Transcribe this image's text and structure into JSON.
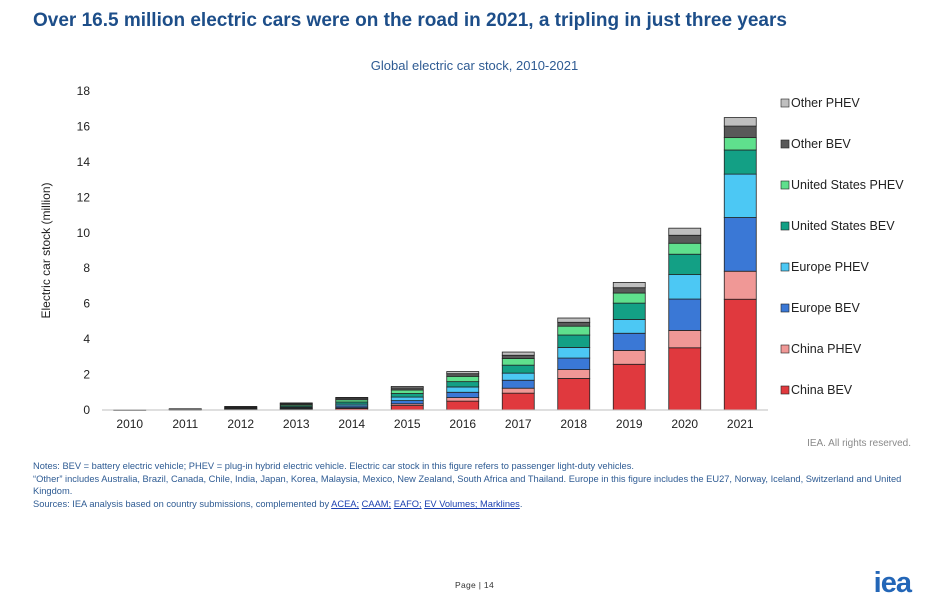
{
  "slide": {
    "title": "Over 16.5 million electric cars were on the road in 2021, a tripling in just three years",
    "rights": "IEA. All rights reserved.",
    "page_label": "Page | 14",
    "logo_text": "iea"
  },
  "notes": {
    "line1": "Notes: BEV = battery electric vehicle; PHEV = plug-in hybrid electric vehicle. Electric car stock in this figure refers to passenger light-duty vehicles.",
    "line2": "“Other” includes Australia, Brazil, Canada, Chile, India, Japan, Korea, Malaysia, Mexico, New Zealand, South Africa and Thailand. Europe in this figure includes the EU27, Norway, Iceland, Switzerland and United Kingdom.",
    "sources_prefix": "Sources: IEA analysis based on country submissions, complemented by ",
    "links": [
      "ACEA;",
      "CAAM;",
      "EAFO;",
      "EV Volumes; Marklines"
    ],
    "sources_suffix": "."
  },
  "chart_data": {
    "type": "bar",
    "stacked": true,
    "title": "Global electric car stock, 2010-2021",
    "xlabel": "",
    "ylabel": "Electric car stock (million)",
    "ylim": [
      0,
      18
    ],
    "yticks": [
      0,
      2,
      4,
      6,
      8,
      10,
      12,
      14,
      16,
      18
    ],
    "grid": false,
    "legend_position": "right",
    "categories": [
      "2010",
      "2011",
      "2012",
      "2013",
      "2014",
      "2015",
      "2016",
      "2017",
      "2018",
      "2019",
      "2020",
      "2021"
    ],
    "series": [
      {
        "name": "China BEV",
        "color": "#e0393e",
        "values": [
          0.01,
          0.02,
          0.03,
          0.05,
          0.09,
          0.25,
          0.5,
          0.95,
          1.78,
          2.58,
          3.51,
          6.25
        ]
      },
      {
        "name": "China PHEV",
        "color": "#f09896",
        "values": [
          0.0,
          0.0,
          0.01,
          0.02,
          0.04,
          0.1,
          0.2,
          0.28,
          0.5,
          0.78,
          0.98,
          1.58
        ]
      },
      {
        "name": "Europe BEV",
        "color": "#3a78d6",
        "values": [
          0.0,
          0.01,
          0.02,
          0.05,
          0.1,
          0.18,
          0.3,
          0.45,
          0.65,
          0.97,
          1.77,
          3.03
        ]
      },
      {
        "name": "Europe PHEV",
        "color": "#4cc8f4",
        "values": [
          0.0,
          0.0,
          0.02,
          0.05,
          0.1,
          0.2,
          0.3,
          0.4,
          0.6,
          0.78,
          1.38,
          2.45
        ]
      },
      {
        "name": "United States BEV",
        "color": "#13a085",
        "values": [
          0.0,
          0.01,
          0.03,
          0.07,
          0.12,
          0.2,
          0.3,
          0.45,
          0.7,
          0.92,
          1.15,
          1.36
        ]
      },
      {
        "name": "United States PHEV",
        "color": "#5fe08d",
        "values": [
          0.0,
          0.01,
          0.04,
          0.07,
          0.13,
          0.2,
          0.3,
          0.38,
          0.5,
          0.57,
          0.62,
          0.7
        ]
      },
      {
        "name": "Other BEV",
        "color": "#595959",
        "values": [
          0.0,
          0.02,
          0.04,
          0.07,
          0.09,
          0.12,
          0.15,
          0.18,
          0.22,
          0.3,
          0.45,
          0.65
        ]
      },
      {
        "name": "Other PHEV",
        "color": "#bfbfbf",
        "values": [
          0.0,
          0.0,
          0.01,
          0.02,
          0.04,
          0.08,
          0.12,
          0.18,
          0.24,
          0.3,
          0.4,
          0.48
        ]
      }
    ]
  }
}
